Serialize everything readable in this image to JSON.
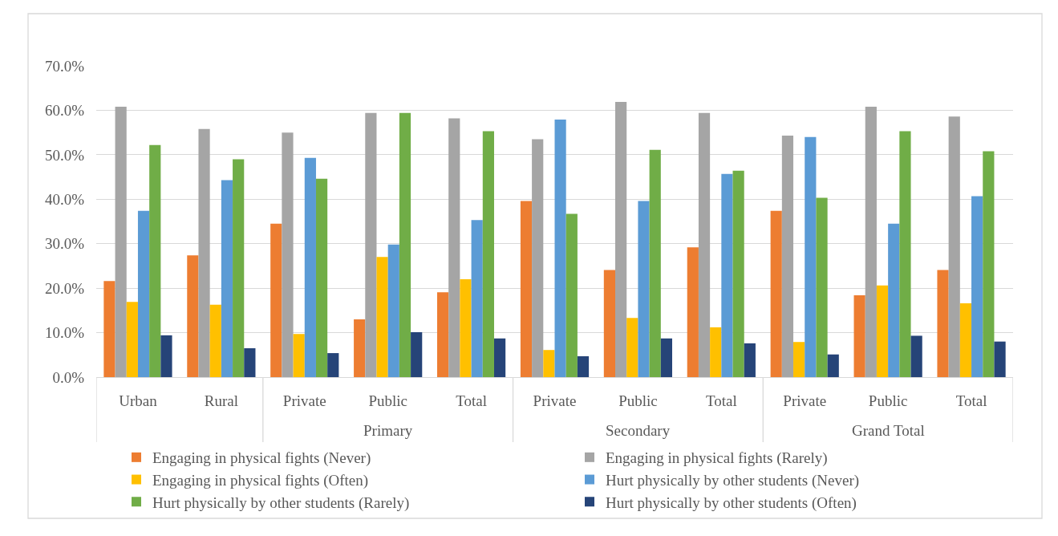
{
  "chart_data": {
    "type": "bar",
    "categories": [
      "Urban",
      "Rural",
      "Private",
      "Public",
      "Total",
      "Private",
      "Public",
      "Total",
      "Private",
      "Public",
      "Total"
    ],
    "series": [
      {
        "name": "Engaging in physical fights (Never)",
        "color": "#ed7d31",
        "values": [
          21.6,
          27.4,
          34.5,
          13.0,
          19.1,
          39.6,
          24.1,
          29.2,
          37.4,
          18.4,
          24.1
        ]
      },
      {
        "name": "Engaging in physical fights (Rarely)",
        "color": "#a5a5a5",
        "values": [
          60.8,
          55.8,
          55.0,
          59.4,
          58.2,
          53.5,
          61.9,
          59.4,
          54.3,
          60.8,
          58.6
        ]
      },
      {
        "name": "Engaging in physical fights (Often)",
        "color": "#ffc000",
        "values": [
          16.9,
          16.3,
          9.7,
          27.0,
          22.0,
          6.1,
          13.3,
          11.2,
          7.9,
          20.6,
          16.6
        ]
      },
      {
        "name": "Hurt physically by other students (Never)",
        "color": "#5b9bd5",
        "values": [
          37.4,
          44.3,
          49.3,
          29.8,
          35.3,
          57.9,
          39.6,
          45.7,
          54.0,
          34.5,
          40.7
        ]
      },
      {
        "name": "Hurt physically by other students (Rarely)",
        "color": "#70ad47",
        "values": [
          52.2,
          49.0,
          44.6,
          59.4,
          55.3,
          36.7,
          51.1,
          46.4,
          40.3,
          55.3,
          50.8
        ]
      },
      {
        "name": "Hurt physically by other students (Often)",
        "color": "#264478",
        "values": [
          9.4,
          6.5,
          5.4,
          10.1,
          8.7,
          4.7,
          8.7,
          7.6,
          5.1,
          9.3,
          8.0
        ]
      }
    ],
    "ylim": [
      0,
      70
    ],
    "yticks": [
      {
        "value": 0,
        "label": "0.0%"
      },
      {
        "value": 10,
        "label": "10.0%"
      },
      {
        "value": 20,
        "label": "20.0%"
      },
      {
        "value": 30,
        "label": "30.0%"
      },
      {
        "value": 40,
        "label": "40.0%"
      },
      {
        "value": 50,
        "label": "50.0%"
      },
      {
        "value": 60,
        "label": "60.0%"
      },
      {
        "value": 70,
        "label": "70.0%"
      }
    ],
    "grid": "y",
    "legend": "bottom",
    "annotations": [
      "Primary",
      "Secondary",
      "Grand Total"
    ]
  }
}
